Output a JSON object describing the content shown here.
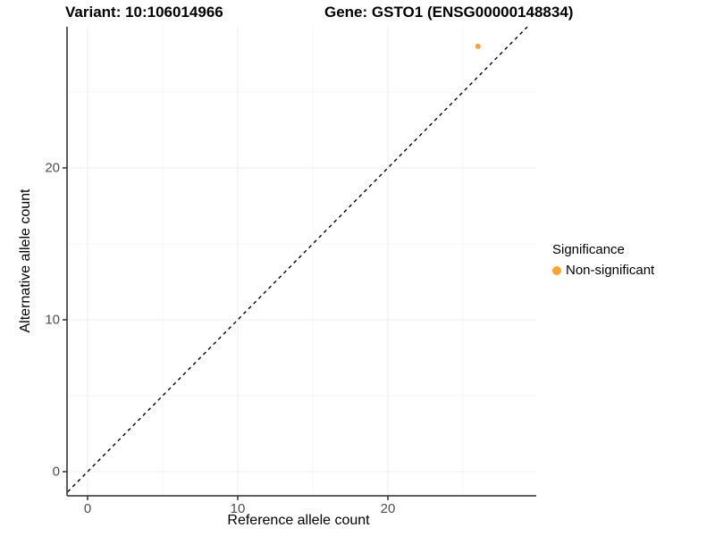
{
  "titles": {
    "variant": "Variant: 10:106014966",
    "gene": "Gene: GSTO1 (ENSG00000148834)"
  },
  "chart_data": {
    "type": "scatter",
    "xlabel": "Reference allele count",
    "ylabel": "Alternative allele count",
    "xlim": [
      -1.37,
      29.88
    ],
    "ylim": [
      -1.59,
      29.29
    ],
    "x_major_ticks": [
      0,
      10,
      20
    ],
    "y_major_ticks": [
      0,
      10,
      20
    ],
    "x_minor_ticks": [
      5,
      15,
      25
    ],
    "y_minor_ticks": [
      5,
      15,
      25
    ],
    "grid": true,
    "identity_line": {
      "style": "dashed",
      "from": [
        -2,
        -2
      ],
      "to": [
        31,
        31
      ]
    },
    "series": [
      {
        "name": "Non-significant",
        "color": "#FCA32B",
        "points": [
          {
            "x": 26,
            "y": 28
          }
        ]
      }
    ],
    "legend": {
      "title": "Significance",
      "position": "right",
      "items": [
        {
          "label": "Non-significant",
          "color": "#FCA32B"
        }
      ]
    }
  },
  "colors": {
    "point": "#FCA32B",
    "axis_line": "#4a4a4a",
    "grid_major": "#ececec",
    "grid_minor": "#f4f4f4",
    "tick_mark": "#333333",
    "identity_line": "#000000"
  }
}
